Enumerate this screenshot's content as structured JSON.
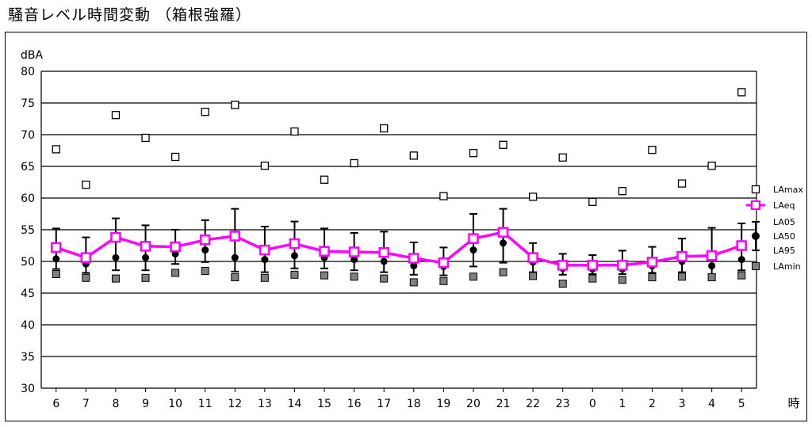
{
  "title": "騒音レベル時間変動 （箱根強羅）",
  "chart_data": {
    "type": "line",
    "ylabel": "dBA",
    "xlabel": "時",
    "ylim": [
      30,
      80
    ],
    "yticks": [
      "30",
      "35",
      "40",
      "45",
      "50",
      "55",
      "60",
      "65",
      "70",
      "75",
      "80"
    ],
    "categories": [
      "6",
      "7",
      "8",
      "9",
      "10",
      "11",
      "12",
      "13",
      "14",
      "15",
      "16",
      "17",
      "18",
      "19",
      "20",
      "21",
      "22",
      "23",
      "0",
      "1",
      "2",
      "3",
      "4",
      "5"
    ],
    "grid": true,
    "legend_position": "right",
    "series": [
      {
        "name": "LAmax",
        "color": "#000000",
        "values": [
          67.7,
          62.1,
          73.1,
          69.5,
          66.5,
          73.6,
          74.7,
          65.1,
          70.5,
          62.9,
          65.5,
          71.0,
          66.7,
          60.3,
          67.1,
          68.4,
          60.2,
          66.4,
          59.4,
          61.1,
          67.6,
          62.3,
          65.1,
          76.7
        ]
      },
      {
        "name": "LAeq",
        "color": "#ff00ff",
        "values": [
          52.2,
          50.6,
          53.8,
          52.4,
          52.3,
          53.4,
          54.0,
          51.8,
          52.8,
          51.6,
          51.5,
          51.4,
          50.5,
          49.8,
          53.6,
          54.6,
          50.6,
          49.4,
          49.4,
          49.4,
          49.9,
          50.8,
          50.9,
          52.5
        ]
      },
      {
        "name": "LA05",
        "color": "#000000",
        "values": [
          55.2,
          53.8,
          56.8,
          55.7,
          55.0,
          56.5,
          58.3,
          55.5,
          56.3,
          55.2,
          54.5,
          54.7,
          53.0,
          52.2,
          57.5,
          58.3,
          52.9,
          51.2,
          51.0,
          51.7,
          52.3,
          53.6,
          55.3,
          56.0
        ]
      },
      {
        "name": "LA50",
        "color": "#000000",
        "values": [
          50.4,
          49.6,
          50.6,
          50.6,
          51.2,
          51.8,
          50.6,
          50.3,
          50.9,
          50.6,
          50.3,
          50.0,
          49.3,
          49.2,
          51.8,
          52.9,
          49.9,
          48.9,
          48.8,
          48.8,
          49.3,
          50.0,
          49.3,
          50.3
        ]
      },
      {
        "name": "LA95",
        "color": "#000000",
        "values": [
          48.8,
          48.2,
          48.6,
          48.6,
          49.6,
          49.9,
          48.4,
          48.3,
          48.9,
          48.9,
          48.6,
          48.3,
          47.9,
          47.8,
          49.2,
          49.8,
          48.3,
          47.9,
          48.0,
          48.0,
          48.2,
          48.3,
          48.0,
          48.6
        ]
      },
      {
        "name": "LAmin",
        "color": "#808080",
        "values": [
          48.0,
          47.4,
          47.3,
          47.4,
          48.2,
          48.5,
          47.5,
          47.4,
          47.9,
          47.8,
          47.6,
          47.3,
          46.7,
          46.9,
          47.6,
          48.3,
          47.7,
          46.5,
          47.3,
          47.1,
          47.5,
          47.6,
          47.5,
          47.8
        ]
      }
    ]
  }
}
